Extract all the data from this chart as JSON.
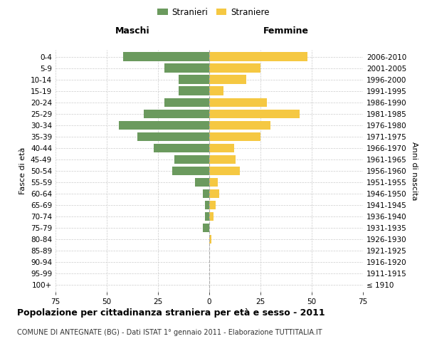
{
  "age_groups": [
    "100+",
    "95-99",
    "90-94",
    "85-89",
    "80-84",
    "75-79",
    "70-74",
    "65-69",
    "60-64",
    "55-59",
    "50-54",
    "45-49",
    "40-44",
    "35-39",
    "30-34",
    "25-29",
    "20-24",
    "15-19",
    "10-14",
    "5-9",
    "0-4"
  ],
  "birth_years": [
    "≤ 1910",
    "1911-1915",
    "1916-1920",
    "1921-1925",
    "1926-1930",
    "1931-1935",
    "1936-1940",
    "1941-1945",
    "1946-1950",
    "1951-1955",
    "1956-1960",
    "1961-1965",
    "1966-1970",
    "1971-1975",
    "1976-1980",
    "1981-1985",
    "1986-1990",
    "1991-1995",
    "1996-2000",
    "2001-2005",
    "2006-2010"
  ],
  "males": [
    0,
    0,
    0,
    0,
    0,
    3,
    2,
    2,
    3,
    7,
    18,
    17,
    27,
    35,
    44,
    32,
    22,
    15,
    15,
    22,
    42
  ],
  "females": [
    0,
    0,
    0,
    0,
    1,
    0,
    2,
    3,
    5,
    4,
    15,
    13,
    12,
    25,
    30,
    44,
    28,
    7,
    18,
    25,
    48
  ],
  "male_color": "#6b9a5e",
  "female_color": "#f5c842",
  "background_color": "#ffffff",
  "grid_color": "#cccccc",
  "xlim": 75,
  "title": "Popolazione per cittadinanza straniera per età e sesso - 2011",
  "subtitle": "COMUNE DI ANTEGNATE (BG) - Dati ISTAT 1° gennaio 2011 - Elaborazione TUTTITALIA.IT",
  "xlabel_left": "Maschi",
  "xlabel_right": "Femmine",
  "ylabel_left": "Fasce di età",
  "ylabel_right": "Anni di nascita",
  "legend_male": "Stranieri",
  "legend_female": "Straniere",
  "title_fontsize": 9,
  "subtitle_fontsize": 7,
  "axis_fontsize": 8,
  "tick_fontsize": 7.5,
  "header_fontsize": 9
}
